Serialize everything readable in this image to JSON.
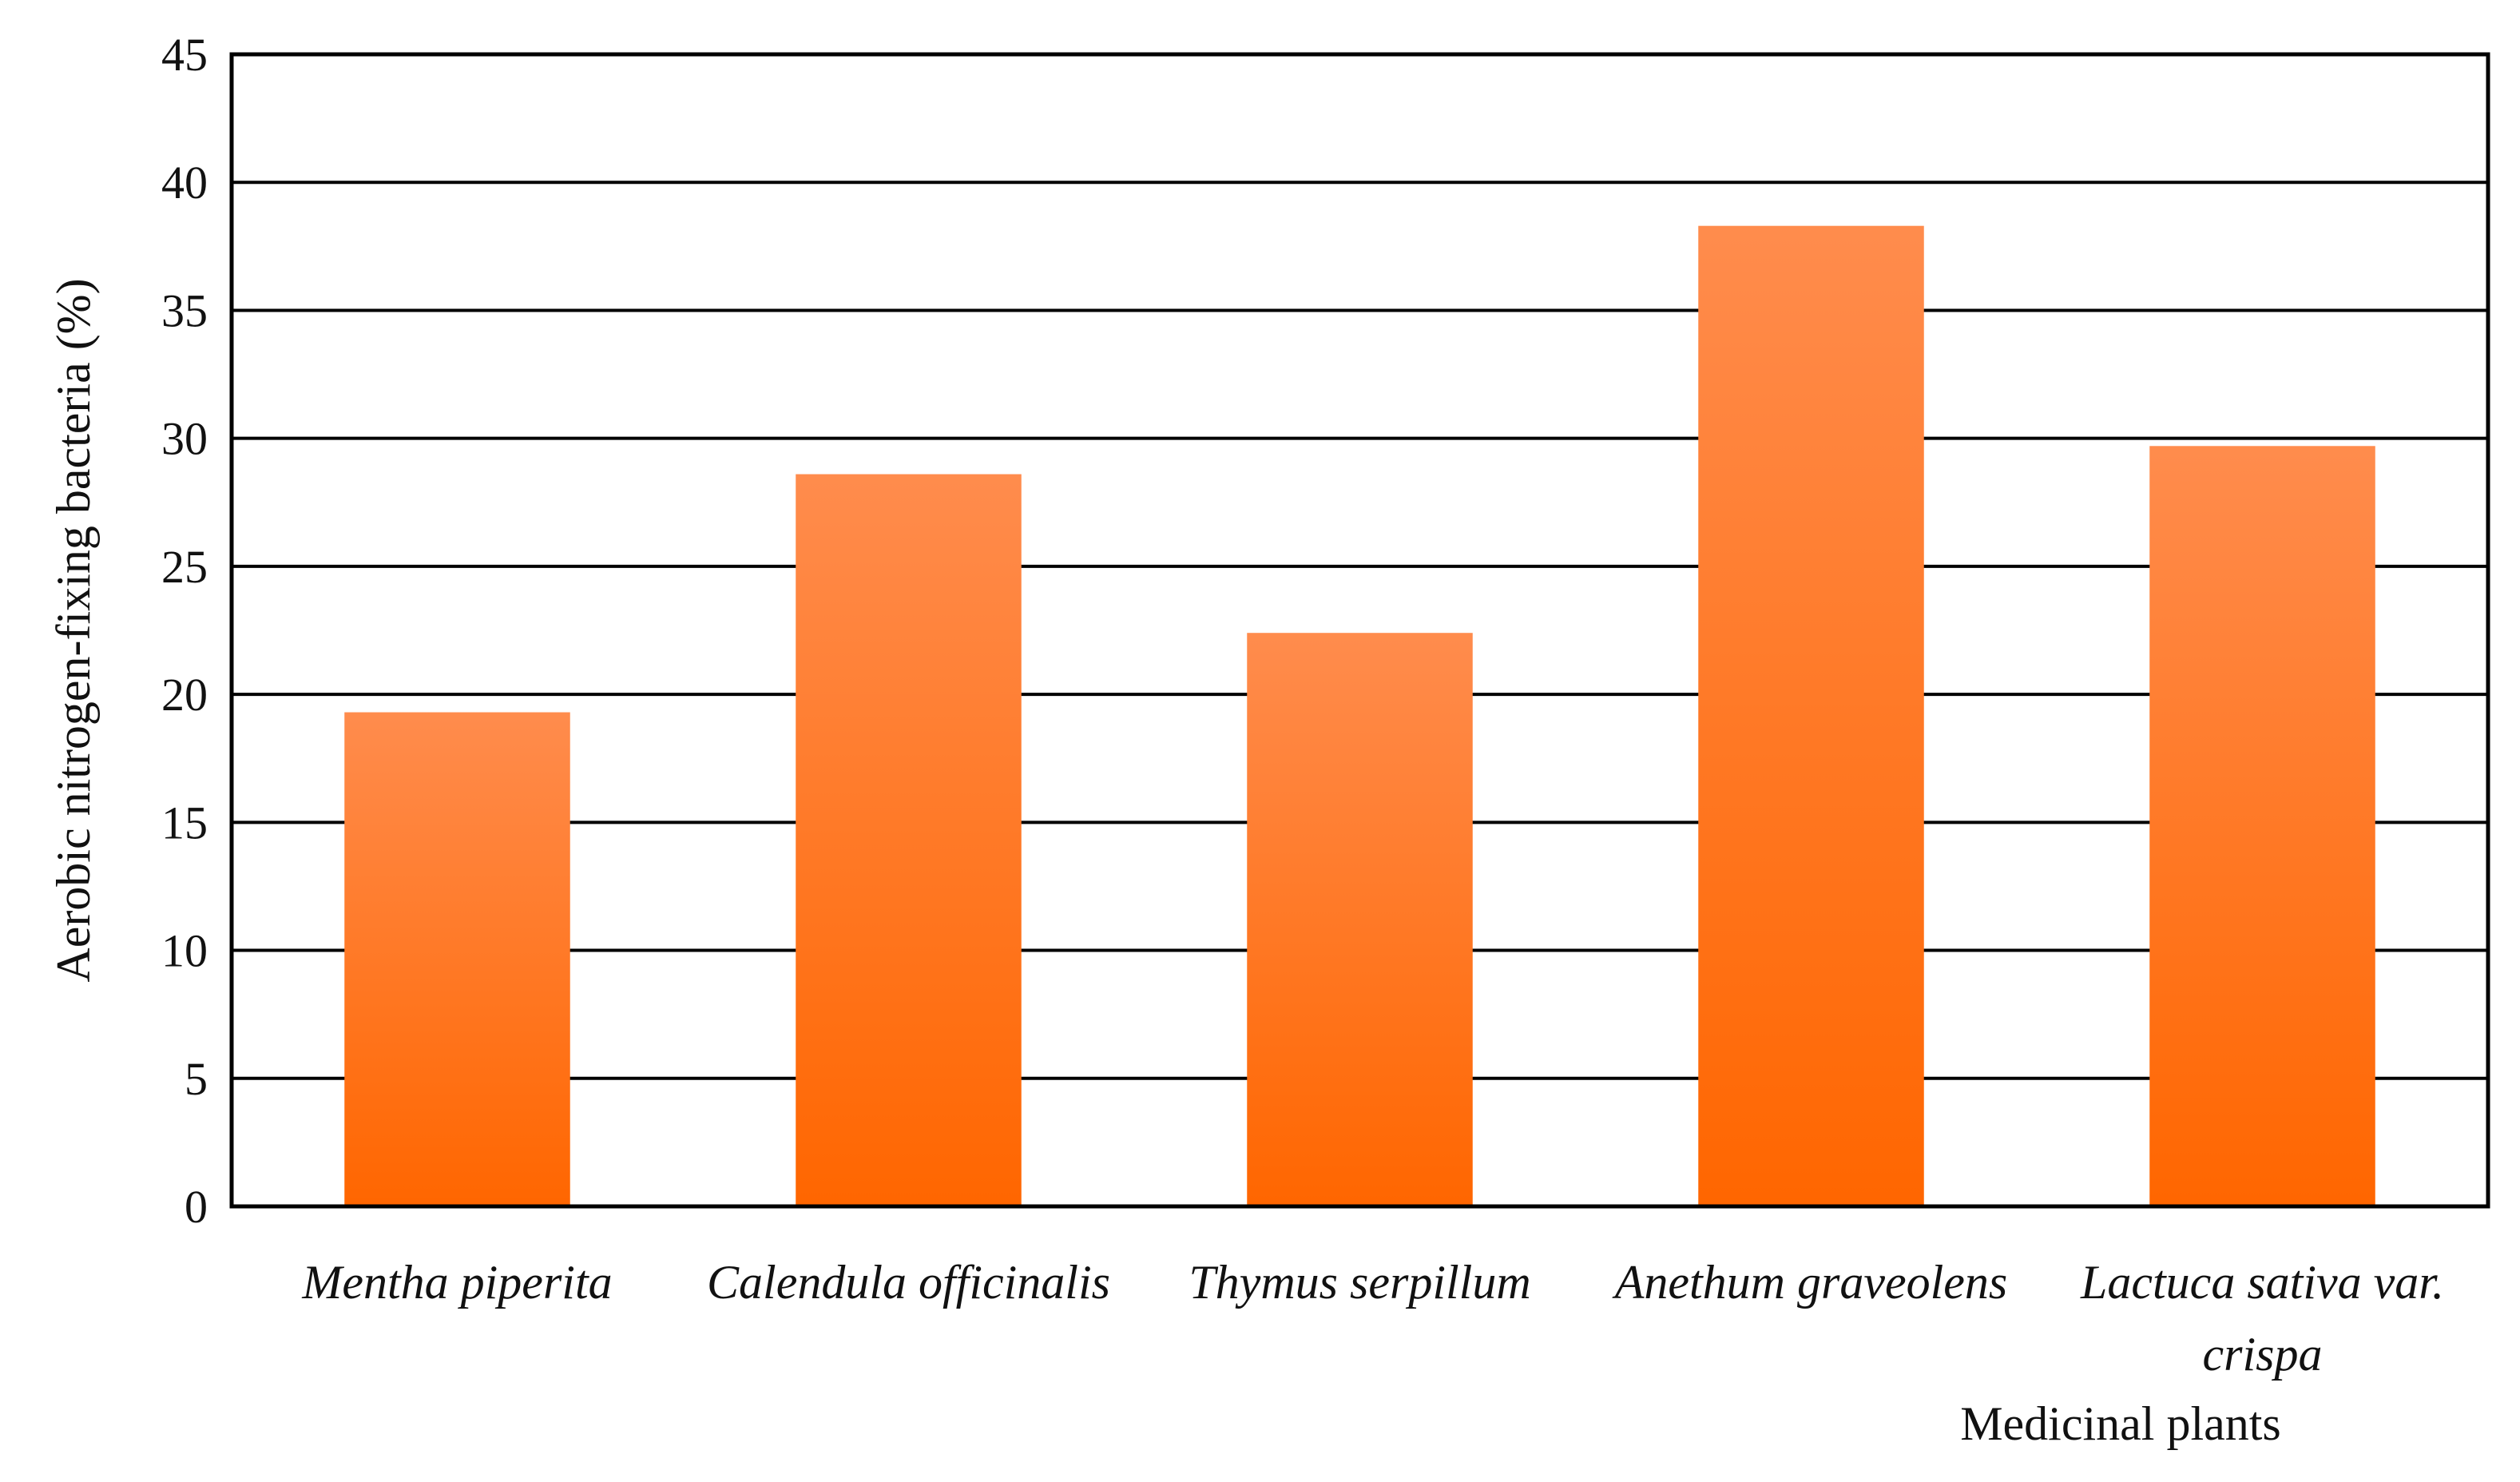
{
  "chart_data": {
    "type": "bar",
    "categories": [
      [
        "Mentha piperita"
      ],
      [
        "Calendula officinalis"
      ],
      [
        "Thymus serpillum"
      ],
      [
        "Anethum graveolens"
      ],
      [
        "Lactuca sativa var.",
        "crispa"
      ]
    ],
    "values": [
      19.3,
      28.6,
      22.4,
      38.3,
      29.7
    ],
    "title": "",
    "xlabel": "Medicinal plants",
    "ylabel": "Aerobic nitrogen-fixing bacteria (%)",
    "ylim": [
      0,
      45
    ],
    "yticks": [
      0,
      5,
      10,
      15,
      20,
      25,
      30,
      35,
      40,
      45
    ],
    "grid": true,
    "legend": "none",
    "colors": {
      "bar_top": "#ff8c4d",
      "bar_bottom": "#ff6600",
      "gridline": "#000000",
      "frame": "#000000"
    }
  }
}
